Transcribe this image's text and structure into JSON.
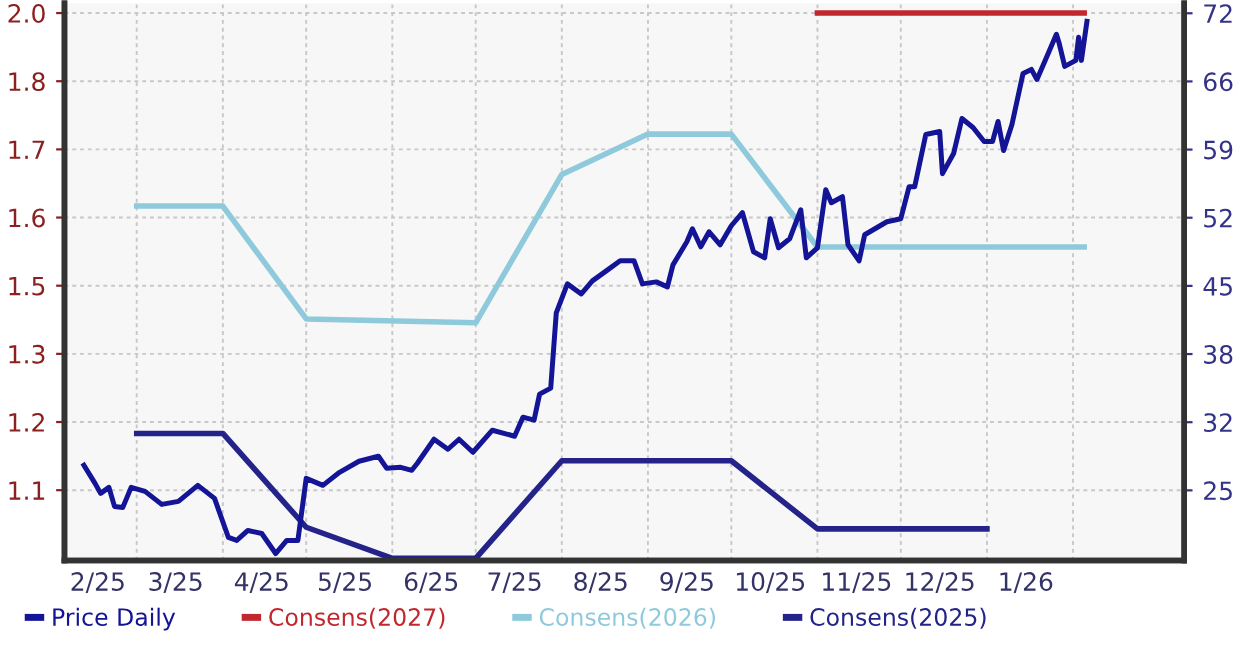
{
  "chart_data": {
    "type": "line",
    "xlim": [
      "2025-02-03",
      "2026-03-13"
    ],
    "xticks": [
      {
        "value": "2025-02-15",
        "label": "2/25"
      },
      {
        "value": "2025-03-01",
        "label": null
      },
      {
        "value": "2025-03-15",
        "label": "3/25"
      },
      {
        "value": "2025-04-01",
        "label": null
      },
      {
        "value": "2025-04-15",
        "label": "4/25"
      },
      {
        "value": "2025-05-01",
        "label": null
      },
      {
        "value": "2025-05-15",
        "label": "5/25"
      },
      {
        "value": "2025-06-01",
        "label": null
      },
      {
        "value": "2025-06-15",
        "label": "6/25"
      },
      {
        "value": "2025-07-01",
        "label": null
      },
      {
        "value": "2025-07-15",
        "label": "7/25"
      },
      {
        "value": "2025-08-01",
        "label": null
      },
      {
        "value": "2025-08-15",
        "label": "8/25"
      },
      {
        "value": "2025-09-01",
        "label": null
      },
      {
        "value": "2025-09-15",
        "label": "9/25"
      },
      {
        "value": "2025-10-01",
        "label": null
      },
      {
        "value": "2025-10-15",
        "label": "10/25"
      },
      {
        "value": "2025-11-01",
        "label": null
      },
      {
        "value": "2025-11-15",
        "label": "11/25"
      },
      {
        "value": "2025-12-01",
        "label": null
      },
      {
        "value": "2025-12-15",
        "label": "12/25"
      },
      {
        "value": "2026-01-01",
        "label": null
      },
      {
        "value": "2026-01-15",
        "label": "1/26"
      },
      {
        "value": "2026-02-01",
        "label": null
      }
    ],
    "ylim": [
      0.951,
      1.973
    ],
    "yticks": [
      {
        "value": 1.08,
        "label": "1.1"
      },
      {
        "value": 1.205,
        "label": "1.2"
      },
      {
        "value": 1.33,
        "label": "1.3"
      },
      {
        "value": 1.455,
        "label": "1.5"
      },
      {
        "value": 1.58,
        "label": "1.6"
      },
      {
        "value": 1.705,
        "label": "1.7"
      },
      {
        "value": 1.83,
        "label": "1.8"
      },
      {
        "value": 1.955,
        "label": "2.0"
      }
    ],
    "y2lim": [
      17.8,
      73.4
    ],
    "y2ticks": [
      {
        "value": 24.8,
        "label": "25"
      },
      {
        "value": 31.6,
        "label": "32"
      },
      {
        "value": 38.4,
        "label": "38"
      },
      {
        "value": 45.2,
        "label": "45"
      },
      {
        "value": 52.0,
        "label": "52"
      },
      {
        "value": 58.8,
        "label": "59"
      },
      {
        "value": 65.6,
        "label": "66"
      },
      {
        "value": 72.4,
        "label": "72"
      }
    ],
    "grid": true,
    "legend": "bottom",
    "marker": "none",
    "line_style": "solid",
    "series": [
      {
        "name": "Price Daily",
        "color": "#141496",
        "axis": "y2",
        "x": [
          "2025-02-10",
          "2025-02-14",
          "2025-02-16",
          "2025-02-19",
          "2025-02-21",
          "2025-02-24",
          "2025-02-27",
          "2025-03-04",
          "2025-03-10",
          "2025-03-16",
          "2025-03-23",
          "2025-03-29",
          "2025-04-03",
          "2025-04-06",
          "2025-04-10",
          "2025-04-15",
          "2025-04-20",
          "2025-04-24",
          "2025-04-28",
          "2025-05-01",
          "2025-05-07",
          "2025-05-13",
          "2025-05-20",
          "2025-05-27",
          "2025-05-30",
          "2025-06-04",
          "2025-06-08",
          "2025-06-10",
          "2025-06-16",
          "2025-06-21",
          "2025-06-25",
          "2025-06-30",
          "2025-07-07",
          "2025-07-15",
          "2025-07-18",
          "2025-07-22",
          "2025-07-24",
          "2025-07-28",
          "2025-07-30",
          "2025-08-03",
          "2025-08-08",
          "2025-08-12",
          "2025-08-17",
          "2025-08-22",
          "2025-08-27",
          "2025-08-30",
          "2025-09-04",
          "2025-09-08",
          "2025-09-10",
          "2025-09-15",
          "2025-09-17",
          "2025-09-20",
          "2025-09-23",
          "2025-09-27",
          "2025-10-01",
          "2025-10-05",
          "2025-10-09",
          "2025-10-13",
          "2025-10-15",
          "2025-10-18",
          "2025-10-22",
          "2025-10-26",
          "2025-10-28",
          "2025-11-01",
          "2025-11-04",
          "2025-11-06",
          "2025-11-10",
          "2025-11-12",
          "2025-11-16",
          "2025-11-18",
          "2025-11-26",
          "2025-12-01",
          "2025-12-04",
          "2025-12-06",
          "2025-12-10",
          "2025-12-15",
          "2025-12-16",
          "2025-12-20",
          "2025-12-23",
          "2025-12-27",
          "2025-12-31",
          "2026-01-03",
          "2026-01-05",
          "2026-01-07",
          "2026-01-10",
          "2026-01-14",
          "2026-01-17",
          "2026-01-19",
          "2026-01-22",
          "2026-01-26",
          "2026-01-27",
          "2026-01-29",
          "2026-02-02",
          "2026-02-03",
          "2026-02-04",
          "2026-02-06"
        ],
        "values": [
          27.3,
          25.5,
          24.5,
          25.1,
          23.2,
          23.1,
          25.1,
          24.7,
          23.4,
          23.7,
          25.3,
          24.0,
          20.1,
          19.8,
          20.8,
          20.5,
          18.5,
          19.8,
          19.8,
          26.0,
          25.3,
          26.6,
          27.7,
          28.2,
          27.0,
          27.1,
          26.8,
          27.5,
          29.9,
          28.9,
          29.9,
          28.6,
          30.8,
          30.2,
          32.1,
          31.8,
          34.4,
          35.0,
          42.5,
          45.4,
          44.4,
          45.7,
          46.7,
          47.7,
          47.7,
          45.4,
          45.6,
          45.1,
          47.3,
          49.6,
          50.9,
          49.1,
          50.6,
          49.3,
          51.2,
          52.5,
          48.6,
          48.0,
          51.9,
          49.0,
          49.9,
          52.8,
          48.0,
          49.0,
          54.8,
          53.5,
          54.1,
          49.3,
          47.7,
          50.3,
          51.6,
          51.9,
          55.1,
          55.1,
          60.3,
          60.6,
          56.4,
          58.4,
          61.9,
          61.0,
          59.6,
          59.6,
          61.6,
          58.7,
          61.3,
          66.4,
          66.8,
          65.8,
          67.7,
          70.3,
          69.4,
          67.1,
          67.7,
          70.0,
          67.7,
          71.6
        ]
      },
      {
        "name": "Consens(2027)",
        "color": "#c0282d",
        "axis": "y",
        "x": [
          "2025-11-01",
          "2026-02-05"
        ],
        "values": [
          1.955,
          1.955
        ]
      },
      {
        "name": "Consens(2026)",
        "color": "#8ecadb",
        "axis": "y",
        "x": [
          "2025-03-01",
          "2025-04-01",
          "2025-05-01",
          "2025-07-01",
          "2025-08-01",
          "2025-09-01",
          "2025-10-01",
          "2025-11-01",
          "2026-02-05"
        ],
        "values": [
          1.601,
          1.601,
          1.394,
          1.387,
          1.659,
          1.733,
          1.733,
          1.526,
          1.526
        ]
      },
      {
        "name": "Consens(2025)",
        "color": "#23238a",
        "axis": "y",
        "x": [
          "2025-03-01",
          "2025-04-01",
          "2025-05-01",
          "2025-06-01",
          "2025-07-01",
          "2025-08-01",
          "2025-10-01",
          "2025-11-01",
          "2026-01-01"
        ],
        "values": [
          1.184,
          1.184,
          1.012,
          0.955,
          0.955,
          1.134,
          1.134,
          1.009,
          1.009
        ]
      }
    ]
  }
}
